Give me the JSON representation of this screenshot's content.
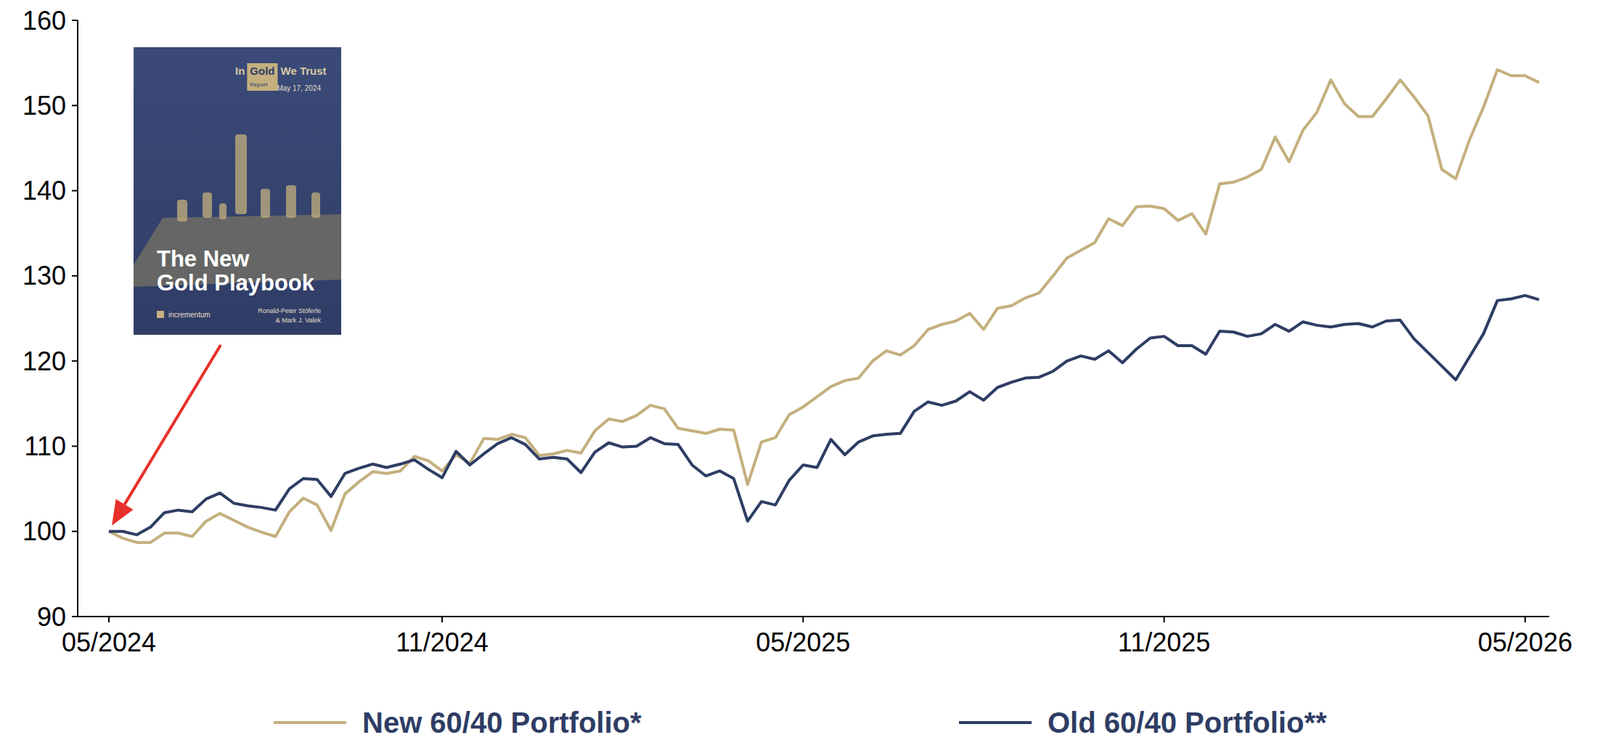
{
  "chart_data": {
    "type": "line",
    "categories": [
      "05/2024",
      null,
      null,
      null,
      null,
      null,
      null,
      null,
      null,
      null,
      null,
      null,
      null,
      null,
      null,
      null,
      null,
      null,
      null,
      null,
      null,
      null,
      null,
      null,
      "11/2024",
      null,
      null,
      null,
      null,
      null,
      null,
      null,
      null,
      null,
      null,
      null,
      null,
      null,
      null,
      null,
      null,
      null,
      null,
      null,
      null,
      null,
      null,
      null,
      null,
      null,
      "05/2025",
      null,
      null,
      null,
      null,
      null,
      null,
      null,
      null,
      null,
      null,
      null,
      null,
      null,
      null,
      null,
      null,
      null,
      null,
      null,
      null,
      null,
      null,
      null,
      null,
      null,
      "11/2025",
      null,
      null,
      null,
      null,
      null,
      null,
      null,
      null,
      null,
      null,
      null,
      null,
      null,
      null,
      null,
      null,
      null,
      null,
      null,
      null,
      null,
      null,
      null,
      null,
      null,
      "05/2026",
      null
    ],
    "series": [
      {
        "name": "New 60/40 Portfolio*",
        "color": "#c4b07e",
        "values": [
          100,
          99.2,
          98.7,
          98.7,
          99.8,
          99.8,
          99.4,
          101.2,
          102.1,
          101.3,
          100.5,
          99.9,
          99.4,
          102.3,
          103.9,
          103.1,
          100.1,
          104.4,
          105.8,
          107,
          106.8,
          107.1,
          108.8,
          108.3,
          107.1,
          109,
          108,
          110.9,
          110.8,
          111.4,
          111,
          108.9,
          109.1,
          109.5,
          109.2,
          111.8,
          113.2,
          112.9,
          113.6,
          114.8,
          114.4,
          112.1,
          111.8,
          111.5,
          112,
          111.9,
          105.5,
          110.5,
          111,
          113.7,
          114.6,
          115.8,
          117,
          117.7,
          118,
          120,
          121.2,
          120.7,
          121.8,
          123.7,
          124.3,
          124.7,
          125.6,
          123.7,
          126.2,
          126.5,
          127.4,
          128,
          130,
          132.1,
          133,
          133.9,
          136.7,
          135.9,
          138.1,
          138.2,
          137.9,
          136.5,
          137.3,
          134.9,
          140.8,
          141,
          141.6,
          142.5,
          146.3,
          143.4,
          147.1,
          149.2,
          153,
          150.2,
          148.7,
          148.7,
          150.8,
          153,
          151,
          148.8,
          142.5,
          141.4,
          146,
          149.8,
          154.2,
          153.5,
          153.5,
          152.7
        ]
      },
      {
        "name": "Old 60/40 Portfolio**",
        "color": "#2e3d64",
        "values": [
          100,
          100,
          99.6,
          100.5,
          102.2,
          102.5,
          102.3,
          103.8,
          104.5,
          103.3,
          103,
          102.8,
          102.5,
          105,
          106.2,
          106.1,
          104.1,
          106.8,
          107.4,
          107.9,
          107.5,
          107.9,
          108.4,
          107.3,
          106.3,
          109.4,
          107.8,
          109.1,
          110.3,
          111,
          110.2,
          108.5,
          108.7,
          108.5,
          106.9,
          109.3,
          110.4,
          109.9,
          110,
          111,
          110.3,
          110.2,
          107.8,
          106.5,
          107.1,
          106.2,
          101.2,
          103.5,
          103.1,
          106,
          107.8,
          107.5,
          110.8,
          109,
          110.5,
          111.2,
          111.4,
          111.5,
          114.1,
          115.2,
          114.8,
          115.3,
          116.4,
          115.4,
          116.9,
          117.5,
          118,
          118.1,
          118.8,
          120,
          120.6,
          120.2,
          121.2,
          119.8,
          121.4,
          122.7,
          122.9,
          121.8,
          121.8,
          120.8,
          123.5,
          123.4,
          122.9,
          123.2,
          124.3,
          123.5,
          124.6,
          124.2,
          124,
          124.3,
          124.4,
          124,
          124.7,
          124.8,
          122.6,
          121,
          119.4,
          117.8,
          120.5,
          123.2,
          127.1,
          127.3,
          127.7,
          127.2
        ]
      }
    ],
    "ylim": [
      90,
      160
    ],
    "yticks": [
      90,
      100,
      110,
      120,
      130,
      140,
      150,
      160
    ],
    "grid": false,
    "legend": "bottom",
    "annotations": [
      "In",
      "Gold",
      "We Trust",
      "Report",
      "May 17, 2024",
      "The New",
      "Gold Playbook",
      "incrementum",
      "Ronald-Peter Stöferle",
      "& Mark J. Valek"
    ]
  }
}
